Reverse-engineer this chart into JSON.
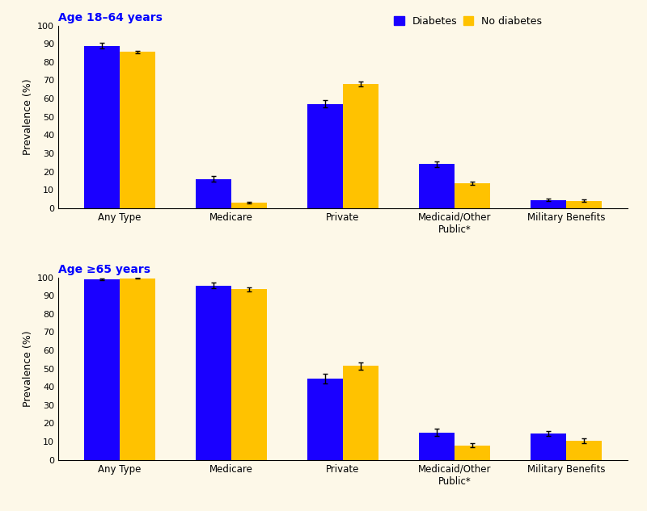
{
  "background_color": "#fdf8e8",
  "bar_color_diabetes": "#1a00ff",
  "bar_color_no_diabetes": "#ffc200",
  "title1": "Age 18–64 years",
  "title2": "Age ≥65 years",
  "ylabel": "Prevalence (%)",
  "categories": [
    "Any Type",
    "Medicare",
    "Private",
    "Medicaid/Other\nPublic*",
    "Military Benefits"
  ],
  "top_diabetes_values": [
    89.0,
    16.0,
    57.0,
    24.0,
    4.5
  ],
  "top_no_diabetes_values": [
    85.5,
    3.0,
    68.0,
    13.5,
    4.0
  ],
  "top_diabetes_errors": [
    1.5,
    1.5,
    2.0,
    1.5,
    0.8
  ],
  "top_no_diabetes_errors": [
    0.8,
    0.5,
    1.5,
    0.8,
    0.8
  ],
  "bot_diabetes_values": [
    99.0,
    95.5,
    44.5,
    15.0,
    14.5
  ],
  "bot_no_diabetes_values": [
    99.5,
    93.5,
    51.5,
    8.0,
    10.5
  ],
  "bot_diabetes_errors": [
    0.5,
    1.5,
    2.5,
    2.0,
    1.5
  ],
  "bot_no_diabetes_errors": [
    0.3,
    1.0,
    2.0,
    1.0,
    1.5
  ],
  "legend_labels": [
    "Diabetes",
    "No diabetes"
  ],
  "ylim": [
    0,
    100
  ],
  "yticks": [
    0,
    10,
    20,
    30,
    40,
    50,
    60,
    70,
    80,
    90,
    100
  ],
  "bar_width": 0.32,
  "figsize": [
    8.0,
    6.33
  ],
  "dpi": 100
}
